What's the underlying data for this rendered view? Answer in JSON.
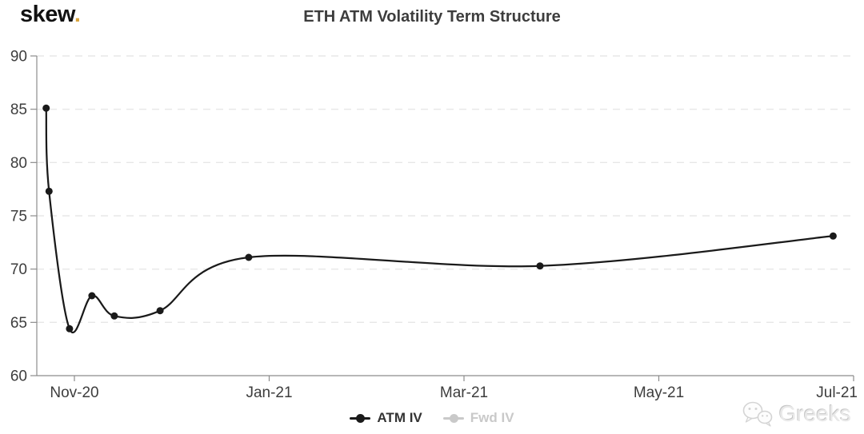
{
  "logo": {
    "text": "skew",
    "dot": ".",
    "dot_color": "#d9a43c"
  },
  "title": "ETH ATM Volatility Term Structure",
  "chart_data": {
    "type": "line",
    "title": "ETH ATM Volatility Term Structure",
    "xlabel": "",
    "ylabel": "",
    "x_unit_description": "months offset from Nov-20 tick (estimated expiry dates)",
    "x_tick_labels": [
      "Nov-20",
      "Jan-21",
      "Mar-21",
      "May-21",
      "Jul-21"
    ],
    "x_tick_positions": [
      0,
      2,
      4,
      6,
      8
    ],
    "xlim": [
      -0.386,
      8.0
    ],
    "y_ticks": [
      60,
      65,
      70,
      75,
      80,
      85,
      90
    ],
    "ylim": [
      60,
      90
    ],
    "grid": "horizontal-dashed",
    "legend_position": "bottom",
    "colors": {
      "grid": "#e7e7e7",
      "axis": "#8c8c8c",
      "label": "#3d3d3d"
    },
    "series": [
      {
        "name": "ATM IV",
        "color": "#1a1a1a",
        "visible": true,
        "x": [
          -0.29,
          -0.26,
          -0.05,
          0.18,
          0.41,
          0.88,
          1.79,
          4.78,
          7.79
        ],
        "values": [
          85.1,
          77.3,
          64.4,
          67.5,
          65.6,
          66.1,
          71.1,
          70.3,
          73.1
        ]
      },
      {
        "name": "Fwd IV",
        "color": "#c9c9c9",
        "visible": false,
        "x": [],
        "values": []
      }
    ]
  },
  "legend": {
    "items": [
      {
        "label": "ATM IV",
        "color": "#1a1a1a",
        "active": true
      },
      {
        "label": "Fwd IV",
        "color": "#c9c9c9",
        "active": false
      }
    ]
  },
  "watermark": {
    "text": "Greeks",
    "icon": "wechat-icon"
  }
}
